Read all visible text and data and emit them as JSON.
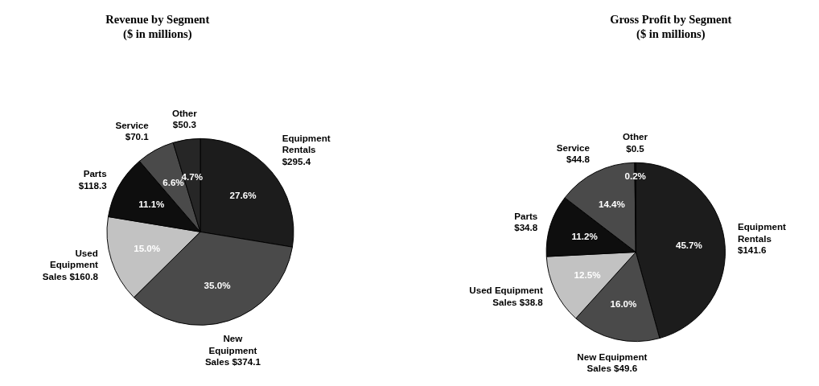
{
  "chart_data": [
    {
      "type": "pie",
      "title": "Revenue by Segment",
      "subtitle": "($ in millions)",
      "categories": [
        "Equipment\nRentals\n$295.4",
        "New\nEquipment\nSales $374.1",
        "Used\nEquipment\nSales $160.8",
        "Parts\n$118.3",
        "Service\n$70.1",
        "Other\n$50.3"
      ],
      "values": [
        27.6,
        35.0,
        15.0,
        11.1,
        6.6,
        4.7
      ],
      "value_labels": [
        "27.6%",
        "35.0%",
        "15.0%",
        "11.1%",
        "6.6%",
        "4.7%"
      ],
      "colors": [
        "#1c1c1c",
        "#4a4a4a",
        "#c2c2c2",
        "#0e0e0e",
        "#4a4a4a",
        "#262626"
      ]
    },
    {
      "type": "pie",
      "title": "Gross Profit by Segment",
      "subtitle": "($ in millions)",
      "categories": [
        "Equipment\nRentals\n$141.6",
        "New Equipment\nSales $49.6",
        "Used Equipment\nSales $38.8",
        "Parts\n$34.8",
        "Service\n$44.8",
        "Other\n$0.5"
      ],
      "values": [
        45.7,
        16.0,
        12.5,
        11.2,
        14.4,
        0.2
      ],
      "value_labels": [
        "45.7%",
        "16.0%",
        "12.5%",
        "11.2%",
        "14.4%",
        "0.2%"
      ],
      "colors": [
        "#1c1c1c",
        "#4a4a4a",
        "#c2c2c2",
        "#0e0e0e",
        "#4a4a4a",
        "#1a1a1a"
      ]
    }
  ]
}
